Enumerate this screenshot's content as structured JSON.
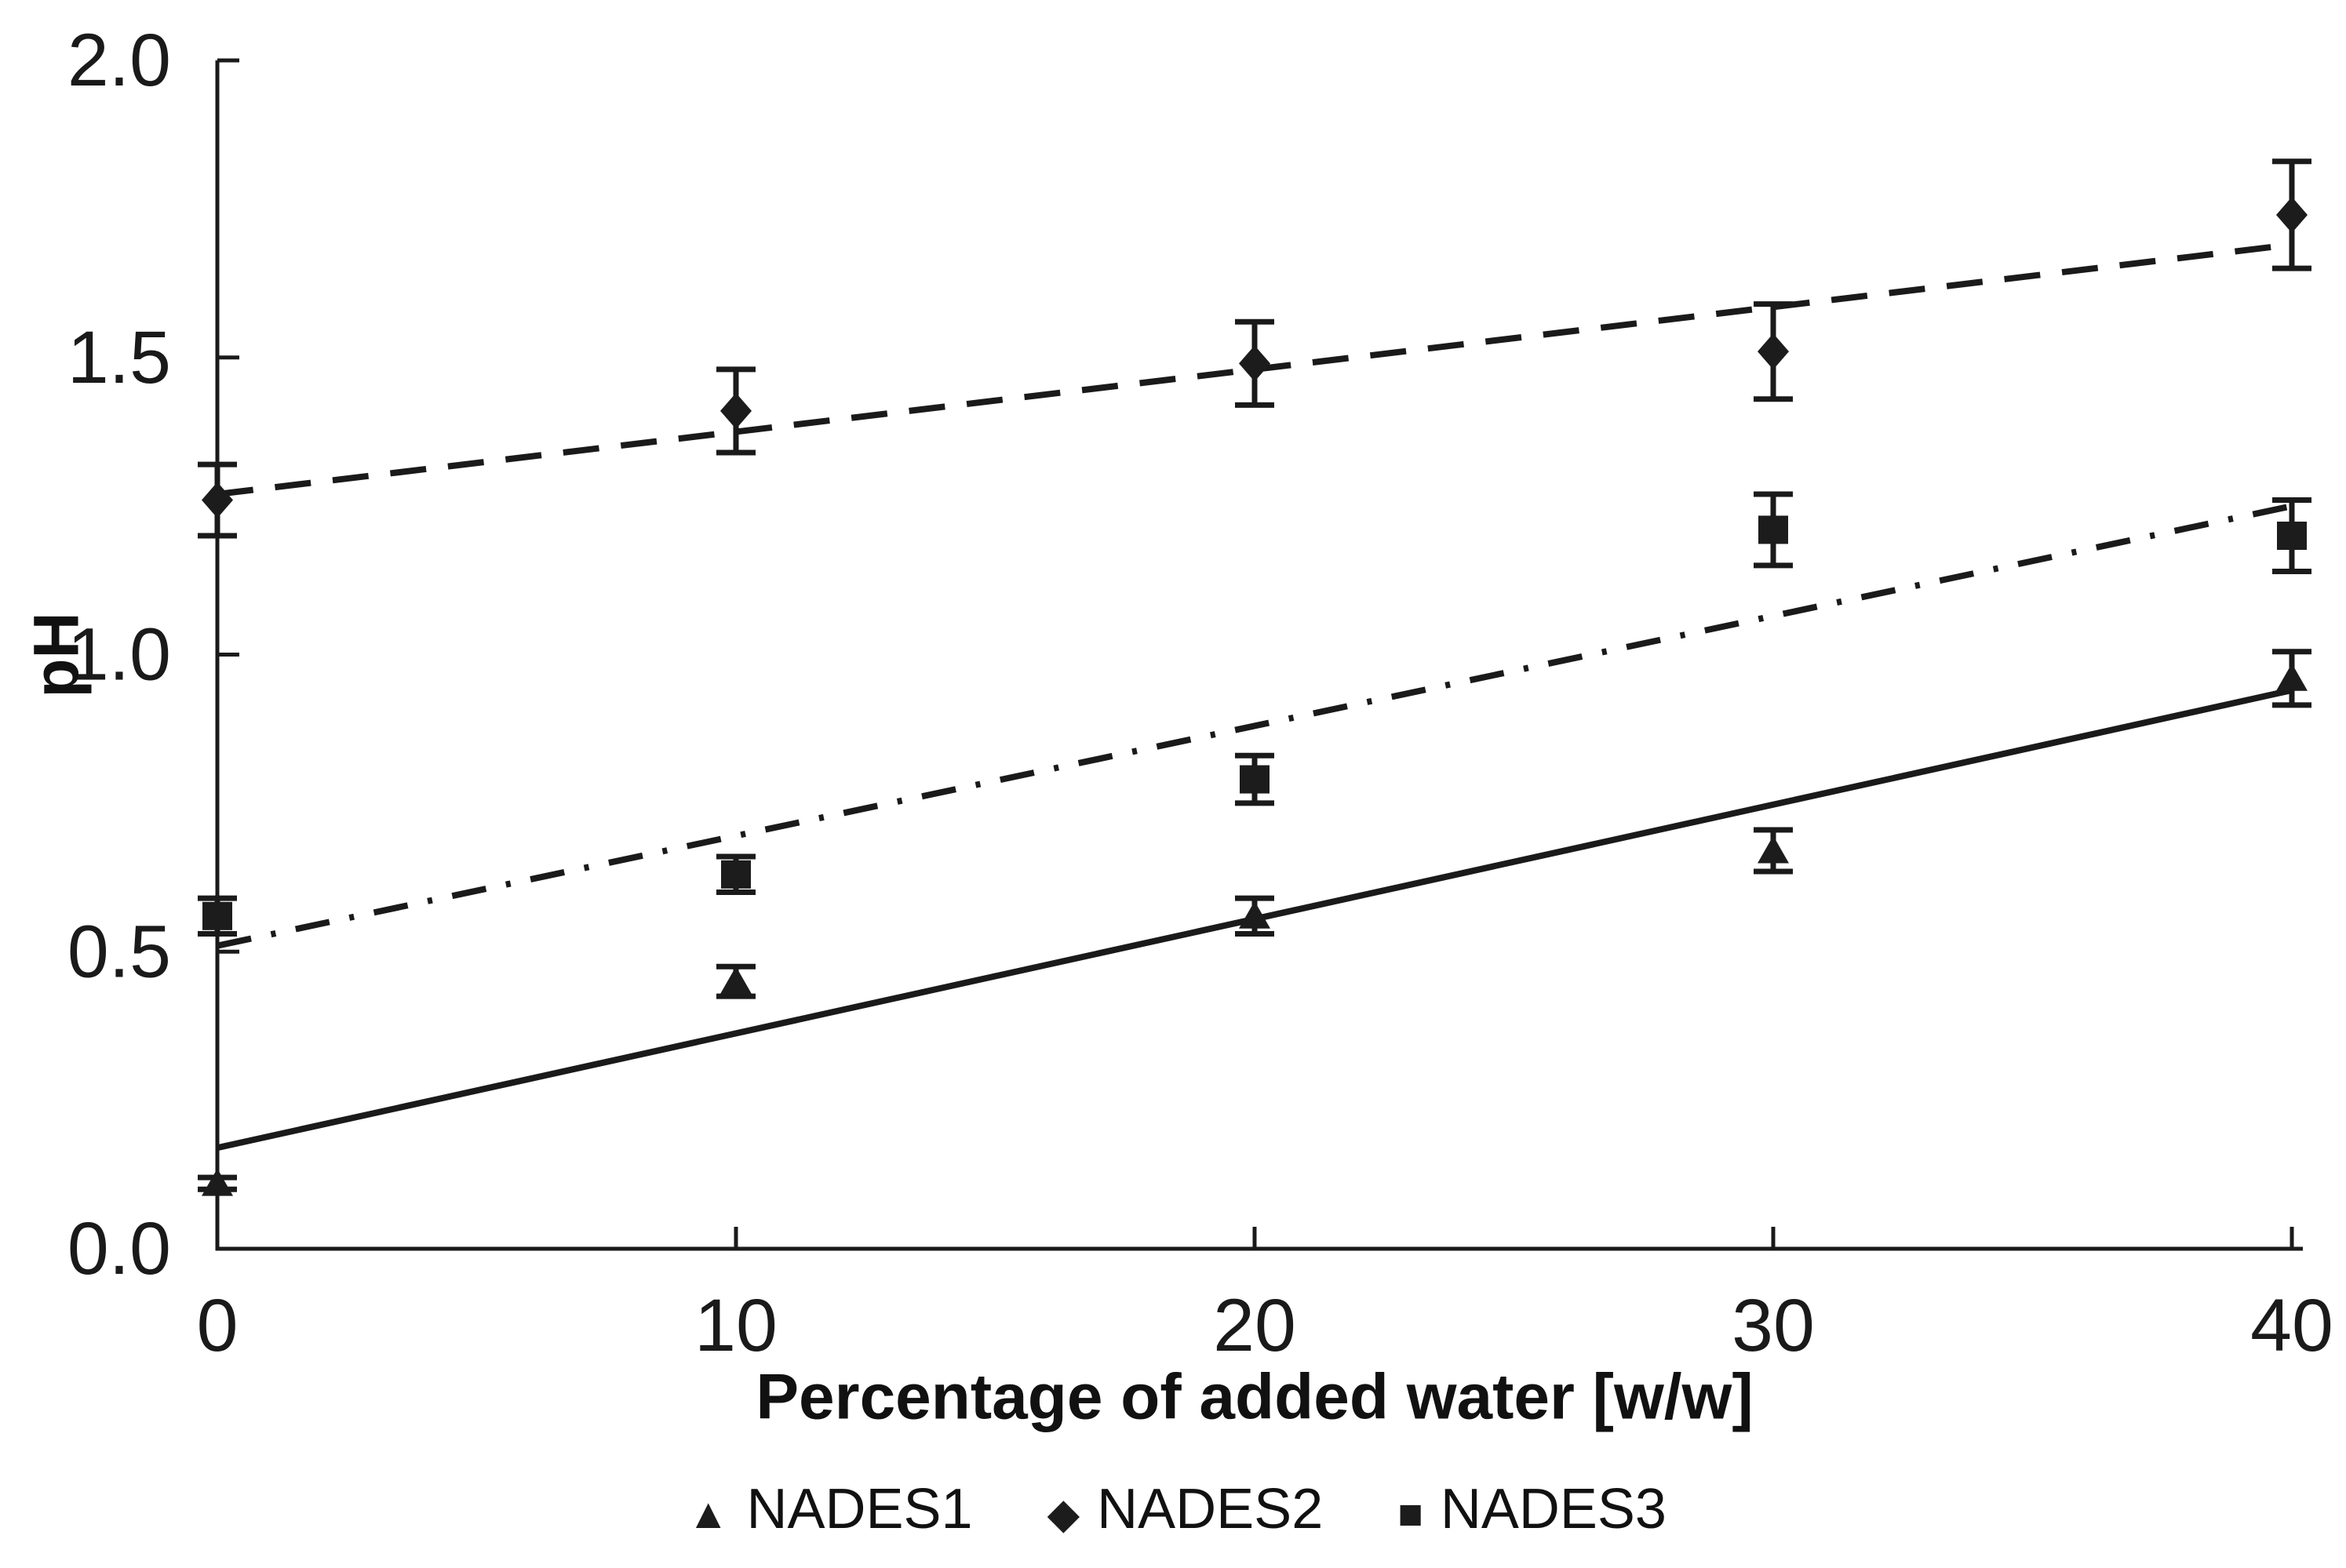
{
  "chart_data": {
    "type": "scatter",
    "title": "",
    "xlabel": "Percentage of added water [w/w]",
    "ylabel": "pH",
    "xlim": [
      0,
      40
    ],
    "ylim": [
      0.0,
      2.0
    ],
    "x": [
      0,
      10,
      20,
      30,
      40
    ],
    "x_ticks": [
      0,
      10,
      20,
      30,
      40
    ],
    "x_tick_labels": [
      "0",
      "10",
      "20",
      "30",
      "40"
    ],
    "y_ticks": [
      0.0,
      0.5,
      1.0,
      1.5,
      2.0
    ],
    "y_tick_labels": [
      "0.0",
      "0.5",
      "1.0",
      "1.5",
      "2.0"
    ],
    "grid": false,
    "legend_position": "bottom-center",
    "series": [
      {
        "name": "NADES1",
        "marker": "triangle",
        "trend_style": "solid",
        "values": [
          0.11,
          0.45,
          0.56,
          0.67,
          0.96
        ],
        "errors": [
          0.01,
          0.025,
          0.03,
          0.035,
          0.045
        ],
        "trendline": {
          "x_start": 0,
          "y_start": 0.17,
          "x_end": 40,
          "y_end": 0.94
        }
      },
      {
        "name": "NADES2",
        "marker": "diamond",
        "trend_style": "dashed",
        "values": [
          1.26,
          1.41,
          1.49,
          1.51,
          1.74
        ],
        "errors": [
          0.06,
          0.07,
          0.07,
          0.08,
          0.09
        ],
        "trendline": {
          "x_start": 0,
          "y_start": 1.27,
          "x_end": 40,
          "y_end": 1.69
        }
      },
      {
        "name": "NADES3",
        "marker": "square",
        "trend_style": "dashdot",
        "values": [
          0.56,
          0.63,
          0.79,
          1.21,
          1.2
        ],
        "errors": [
          0.03,
          0.03,
          0.04,
          0.06,
          0.06
        ],
        "trendline": {
          "x_start": 0,
          "y_start": 0.51,
          "x_end": 40,
          "y_end": 1.25
        }
      }
    ],
    "colors": {
      "foreground": "#1a1a1a",
      "background": "#ffffff"
    }
  },
  "legend": {
    "marker_glyphs": {
      "triangle": "▲",
      "diamond": "◆",
      "square": "■"
    }
  }
}
